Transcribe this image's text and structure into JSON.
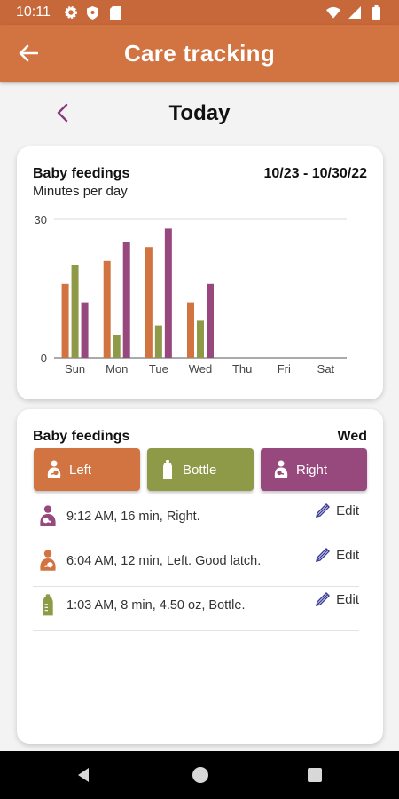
{
  "status_bar": {
    "time": "10:11",
    "icons_left": [
      "gear-icon",
      "shield-icon",
      "sd-card-icon"
    ],
    "icons_right": [
      "wifi-icon",
      "signal-icon",
      "battery-icon"
    ]
  },
  "app_bar": {
    "title": "Care tracking",
    "back_icon": "arrow-left-icon"
  },
  "date_nav": {
    "title": "Today",
    "prev_icon": "chevron-left-icon"
  },
  "colors": {
    "left": "#d27442",
    "bottle": "#8f9a48",
    "right": "#97497e",
    "appbar": "#d27442",
    "statusbar": "#c7683a"
  },
  "chart_card": {
    "title": "Baby feedings",
    "subtitle": "Minutes per day",
    "range": "10/23 - 10/30/22"
  },
  "chart_data": {
    "type": "bar",
    "title": "Baby feedings",
    "subtitle": "Minutes per day",
    "categories": [
      "Sun",
      "Mon",
      "Tue",
      "Wed",
      "Thu",
      "Fri",
      "Sat"
    ],
    "series": [
      {
        "key": "left",
        "values": [
          16,
          21,
          24,
          12,
          0,
          0,
          0
        ]
      },
      {
        "key": "bottle",
        "values": [
          20,
          5,
          7,
          8,
          0,
          0,
          0
        ]
      },
      {
        "key": "right",
        "values": [
          12,
          25,
          28,
          16,
          0,
          0,
          0
        ]
      }
    ],
    "ylim": [
      0,
      30
    ],
    "yticks": [
      "0",
      "30"
    ],
    "grid": true
  },
  "log_card": {
    "title": "Baby feedings",
    "day": "Wed",
    "buttons": {
      "left": {
        "label": "Left",
        "icon": "breastfeeding-icon"
      },
      "bottle": {
        "label": "Bottle",
        "icon": "bottle-icon"
      },
      "right": {
        "label": "Right",
        "icon": "breastfeeding-icon"
      }
    },
    "entries": [
      {
        "text": "9:12 AM, 16 min, Right.",
        "type": "right",
        "icon": "breastfeeding-icon",
        "edit": "Edit"
      },
      {
        "text": "6:04 AM, 12 min, Left. Good latch.",
        "type": "left",
        "icon": "breastfeeding-icon",
        "edit": "Edit"
      },
      {
        "text": "1:03 AM, 8 min, 4.50 oz, Bottle.",
        "type": "bottle",
        "icon": "bottle-icon",
        "edit": "Edit"
      }
    ]
  },
  "nav_bar": {
    "icons": [
      "back-triangle-icon",
      "home-circle-icon",
      "recents-square-icon"
    ]
  }
}
